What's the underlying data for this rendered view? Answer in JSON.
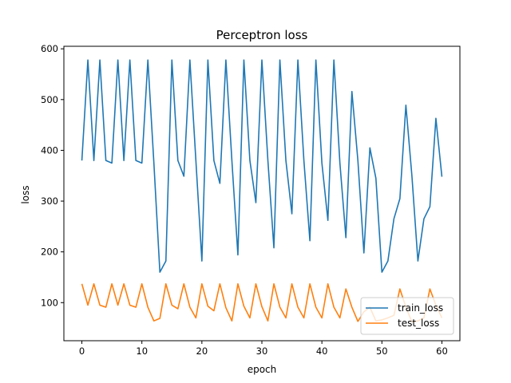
{
  "chart_data": {
    "type": "line",
    "title": "Perceptron loss",
    "xlabel": "epoch",
    "ylabel": "loss",
    "xlim": [
      -3,
      63
    ],
    "ylim": [
      25,
      605
    ],
    "x_ticks": [
      0,
      10,
      20,
      30,
      40,
      50,
      60
    ],
    "y_ticks": [
      100,
      200,
      300,
      400,
      500,
      600
    ],
    "grid": false,
    "legend_position": "lower-right",
    "colors": {
      "train_loss": "#1f77b4",
      "test_loss": "#ff7f0e"
    },
    "x": [
      0,
      1,
      2,
      3,
      4,
      5,
      6,
      7,
      8,
      9,
      10,
      11,
      12,
      13,
      14,
      15,
      16,
      17,
      18,
      19,
      20,
      21,
      22,
      23,
      24,
      25,
      26,
      27,
      28,
      29,
      30,
      31,
      32,
      33,
      34,
      35,
      36,
      37,
      38,
      39,
      40,
      41,
      42,
      43,
      44,
      45,
      46,
      47,
      48,
      49,
      50,
      51,
      52,
      53,
      54,
      55,
      56,
      57,
      58,
      59,
      60
    ],
    "series": [
      {
        "name": "train_loss",
        "values": [
          380,
          578,
          380,
          578,
          380,
          375,
          578,
          380,
          578,
          380,
          375,
          578,
          375,
          160,
          182,
          578,
          380,
          349,
          578,
          380,
          182,
          578,
          380,
          335,
          578,
          380,
          194,
          578,
          380,
          297,
          578,
          380,
          208,
          578,
          380,
          275,
          578,
          380,
          222,
          578,
          375,
          262,
          578,
          375,
          228,
          516,
          380,
          198,
          405,
          345,
          160,
          182,
          265,
          305,
          489,
          350,
          182,
          265,
          289,
          463,
          348
        ]
      },
      {
        "name": "test_loss",
        "values": [
          137,
          95,
          137,
          95,
          91,
          137,
          95,
          137,
          95,
          91,
          137,
          91,
          64,
          69,
          137,
          95,
          88,
          137,
          91,
          70,
          137,
          93,
          84,
          137,
          90,
          64,
          137,
          93,
          70,
          137,
          92,
          64,
          137,
          91,
          70,
          137,
          91,
          70,
          137,
          91,
          70,
          137,
          91,
          70,
          127,
          91,
          63,
          82,
          91,
          64,
          66,
          70,
          75,
          127,
          91,
          62,
          64,
          70,
          127,
          95,
          70
        ]
      }
    ]
  }
}
